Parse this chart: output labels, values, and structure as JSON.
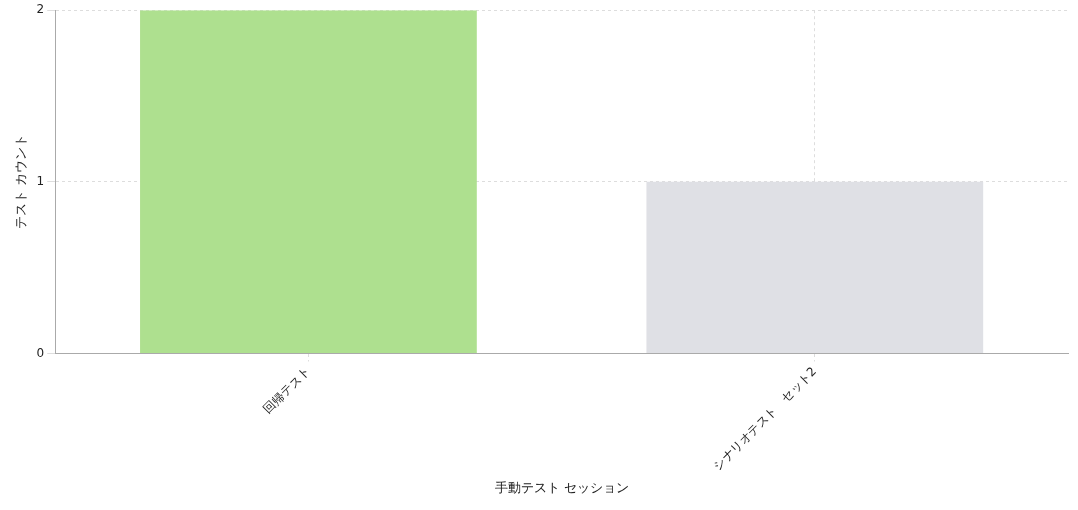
{
  "chart_data": {
    "type": "bar",
    "xlabel": "手動テスト セッション",
    "ylabel": "テスト カウント",
    "categories": [
      "回帰テスト",
      "シナリオテスト　セット2"
    ],
    "values": [
      2,
      1
    ],
    "colors": [
      "#aee08f",
      "#dfe0e5"
    ],
    "ylim": [
      0,
      2
    ],
    "yticks": [
      0,
      1,
      2
    ],
    "grid": true
  }
}
